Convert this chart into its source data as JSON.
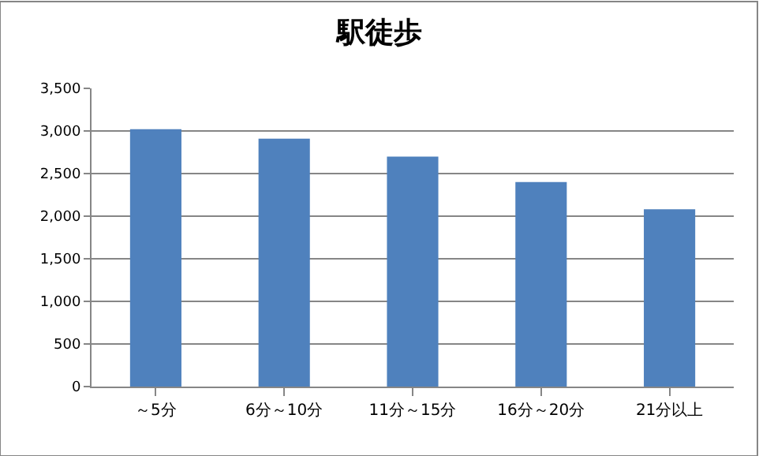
{
  "chart_data": {
    "type": "bar",
    "title": "駅徒歩",
    "categories": [
      "～5分",
      "6分～10分",
      "11分～15分",
      "16分～20分",
      "21分以上"
    ],
    "values": [
      3020,
      2910,
      2700,
      2400,
      2080
    ],
    "color": "#4f81bd",
    "ylim": [
      0,
      3500
    ],
    "yticks": [
      {
        "value": 0,
        "label": "0"
      },
      {
        "value": 500,
        "label": "500"
      },
      {
        "value": 1000,
        "label": "1,000"
      },
      {
        "value": 1500,
        "label": "1,500"
      },
      {
        "value": 2000,
        "label": "2,000"
      },
      {
        "value": 2500,
        "label": "2,500"
      },
      {
        "value": 3000,
        "label": "3,000"
      },
      {
        "value": 3500,
        "label": "3,500"
      }
    ],
    "grid": "y"
  }
}
